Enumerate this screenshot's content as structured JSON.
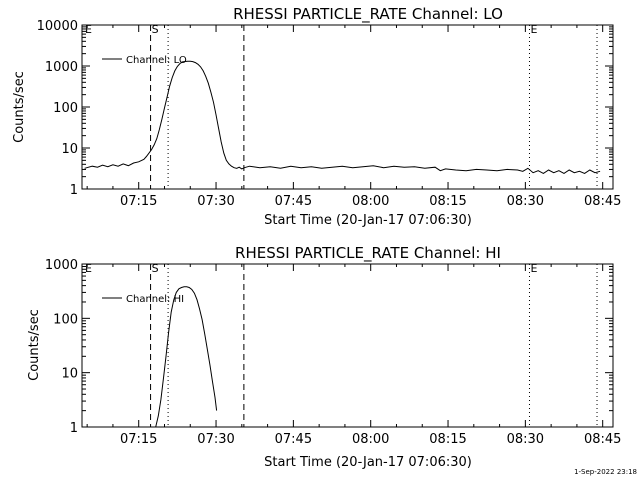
{
  "footer": {
    "timestamp": "1-Sep-2022 23:18"
  },
  "chart_data": [
    {
      "type": "line",
      "title": "RHESSI PARTICLE_RATE Channel: LO",
      "xlabel": "Start Time (20-Jan-17 07:06:30)",
      "ylabel": "Counts/sec",
      "yscale": "log",
      "ylim": [
        1,
        10000
      ],
      "xlim_minutes": [
        -2.5,
        100.5
      ],
      "x_ticks": [
        {
          "t": 8.5,
          "label": "07:15"
        },
        {
          "t": 23.5,
          "label": "07:30"
        },
        {
          "t": 38.5,
          "label": "07:45"
        },
        {
          "t": 53.5,
          "label": "08:00"
        },
        {
          "t": 68.5,
          "label": "08:15"
        },
        {
          "t": 83.5,
          "label": "08:30"
        },
        {
          "t": 98.5,
          "label": "08:45"
        }
      ],
      "y_ticks": [
        {
          "v": 1,
          "label": "1"
        },
        {
          "v": 10,
          "label": "10"
        },
        {
          "v": 100,
          "label": "100"
        },
        {
          "v": 1000,
          "label": "1000"
        },
        {
          "v": 10000,
          "label": "10000"
        }
      ],
      "legend": {
        "label": "Channel: LO",
        "position": "top-left"
      },
      "markers": [
        {
          "t": 10.8,
          "style": "dashed",
          "label": "S"
        },
        {
          "t": 14.2,
          "style": "dotted",
          "label": ""
        },
        {
          "t": 28.9,
          "style": "dashed",
          "label": ""
        },
        {
          "t": 84.3,
          "style": "dotted",
          "label": "E"
        },
        {
          "t": 97.4,
          "style": "dotted",
          "label": ""
        },
        {
          "t": -2.2,
          "style": "none",
          "label": "E"
        }
      ],
      "series": [
        {
          "name": "Channel: LO",
          "x": [
            -2.0,
            -0.5,
            0.5,
            1.5,
            2.5,
            3.5,
            4.5,
            5.5,
            6.5,
            7.5,
            8.5,
            9.5,
            10.0,
            10.5,
            11.0,
            11.5,
            12.0,
            12.5,
            13.0,
            13.5,
            14.0,
            14.5,
            15.0,
            15.5,
            16.0,
            16.5,
            17.0,
            17.5,
            18.0,
            18.5,
            19.0,
            19.5,
            20.0,
            20.5,
            21.0,
            21.5,
            22.0,
            22.5,
            23.0,
            23.5,
            24.0,
            24.5,
            25.0,
            25.5,
            26.0,
            26.5,
            27.0,
            27.5,
            28.0,
            28.5,
            29.0,
            30.0,
            32.0,
            34.0,
            36.0,
            38.0,
            40.0,
            42.0,
            44.0,
            46.0,
            48.0,
            50.0,
            52.0,
            54.0,
            56.0,
            58.0,
            60.0,
            62.0,
            64.0,
            66.0,
            67.0,
            68.0,
            70.0,
            72.0,
            74.0,
            76.0,
            78.0,
            80.0,
            82.0,
            83.0,
            84.0,
            85.0,
            86.0,
            87.0,
            88.0,
            89.0,
            90.0,
            91.0,
            92.0,
            93.0,
            94.0,
            95.0,
            96.0,
            97.0,
            98.0
          ],
          "values": [
            3.2,
            3.6,
            3.4,
            3.8,
            3.5,
            3.9,
            3.6,
            4.1,
            3.7,
            4.3,
            4.6,
            5.3,
            6.2,
            7.5,
            9.2,
            12,
            17,
            28,
            50,
            95,
            175,
            320,
            520,
            760,
            980,
            1150,
            1260,
            1290,
            1310,
            1300,
            1280,
            1210,
            1100,
            950,
            760,
            560,
            380,
            230,
            130,
            65,
            30,
            14,
            7.5,
            5.0,
            4.1,
            3.6,
            3.3,
            3.2,
            3.4,
            3.1,
            3.3,
            3.6,
            3.3,
            3.5,
            3.2,
            3.6,
            3.3,
            3.5,
            3.2,
            3.4,
            3.6,
            3.3,
            3.5,
            3.7,
            3.3,
            3.6,
            3.4,
            3.5,
            3.2,
            3.4,
            2.8,
            3.1,
            2.9,
            2.8,
            3.0,
            2.9,
            2.8,
            3.0,
            2.9,
            2.7,
            3.2,
            2.5,
            2.8,
            2.4,
            2.9,
            2.5,
            2.8,
            2.4,
            2.9,
            2.5,
            2.7,
            2.4,
            2.9,
            2.5,
            2.7
          ]
        }
      ]
    },
    {
      "type": "line",
      "title": "RHESSI PARTICLE_RATE Channel: HI",
      "xlabel": "Start Time (20-Jan-17 07:06:30)",
      "ylabel": "Counts/sec",
      "yscale": "log",
      "ylim": [
        1,
        1000
      ],
      "xlim_minutes": [
        -2.5,
        100.5
      ],
      "x_ticks": [
        {
          "t": 8.5,
          "label": "07:15"
        },
        {
          "t": 23.5,
          "label": "07:30"
        },
        {
          "t": 38.5,
          "label": "07:45"
        },
        {
          "t": 53.5,
          "label": "08:00"
        },
        {
          "t": 68.5,
          "label": "08:15"
        },
        {
          "t": 83.5,
          "label": "08:30"
        },
        {
          "t": 98.5,
          "label": "08:45"
        }
      ],
      "y_ticks": [
        {
          "v": 1,
          "label": "1"
        },
        {
          "v": 10,
          "label": "10"
        },
        {
          "v": 100,
          "label": "100"
        },
        {
          "v": 1000,
          "label": "1000"
        }
      ],
      "legend": {
        "label": "Channel: HI",
        "position": "top-left"
      },
      "markers": [
        {
          "t": 10.8,
          "style": "dashed",
          "label": "S"
        },
        {
          "t": 14.2,
          "style": "dotted",
          "label": ""
        },
        {
          "t": 28.9,
          "style": "dashed",
          "label": ""
        },
        {
          "t": 84.3,
          "style": "dotted",
          "label": "E"
        },
        {
          "t": 97.4,
          "style": "dotted",
          "label": ""
        },
        {
          "t": -2.2,
          "style": "none",
          "label": "E"
        }
      ],
      "series": [
        {
          "name": "Channel: HI",
          "x": [
            11.8,
            12.3,
            12.8,
            13.3,
            13.8,
            14.3,
            14.8,
            15.3,
            15.8,
            16.3,
            16.8,
            17.3,
            17.8,
            18.3,
            18.8,
            19.3,
            19.8,
            20.3,
            20.8,
            21.3,
            21.8,
            22.3,
            22.8,
            23.3,
            23.6
          ],
          "values": [
            1.0,
            1.6,
            3.2,
            8,
            20,
            55,
            130,
            220,
            300,
            350,
            370,
            380,
            380,
            370,
            340,
            290,
            220,
            150,
            95,
            52,
            27,
            14,
            7,
            3.5,
            2.0
          ]
        }
      ]
    }
  ]
}
